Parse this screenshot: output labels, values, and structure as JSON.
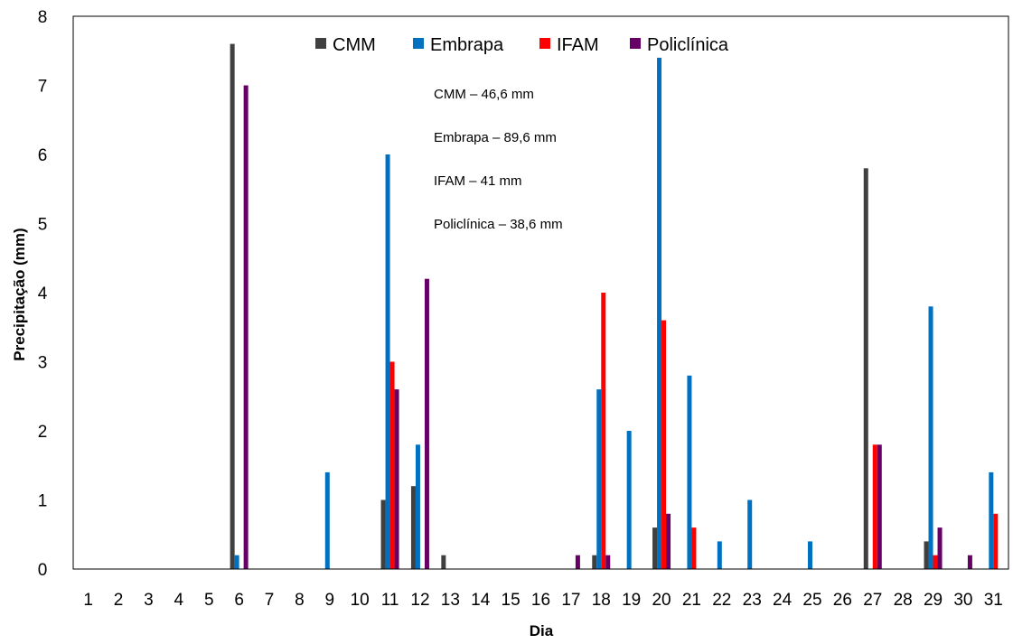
{
  "chart_data": {
    "type": "bar",
    "xlabel": "Dia",
    "ylabel": "Precipitação (mm)",
    "ylim": [
      0,
      8
    ],
    "yticks": [
      "0",
      "1",
      "2",
      "3",
      "4",
      "5",
      "6",
      "7",
      "8"
    ],
    "categories": [
      "1",
      "2",
      "3",
      "4",
      "5",
      "6",
      "7",
      "8",
      "9",
      "10",
      "11",
      "12",
      "13",
      "14",
      "15",
      "16",
      "17",
      "18",
      "19",
      "20",
      "21",
      "22",
      "23",
      "24",
      "25",
      "26",
      "27",
      "28",
      "29",
      "30",
      "31"
    ],
    "legend_position": "top-center",
    "grid": false,
    "series": [
      {
        "name": "CMM",
        "color": "#404040",
        "values": [
          0,
          0,
          0,
          0,
          0,
          7.6,
          0,
          0,
          0,
          0,
          1.0,
          1.2,
          0.2,
          0,
          0,
          0,
          0,
          0.2,
          0,
          0.6,
          0,
          0,
          0,
          0,
          0,
          0,
          5.8,
          0,
          0.4,
          0,
          0
        ]
      },
      {
        "name": "Embrapa",
        "color": "#0070C0",
        "values": [
          0,
          0,
          0,
          0,
          0,
          0.2,
          0,
          0,
          1.4,
          0,
          6.0,
          1.8,
          0,
          0,
          0,
          0,
          0,
          2.6,
          2.0,
          7.4,
          2.8,
          0.4,
          1.0,
          0,
          0.4,
          0,
          0,
          0,
          3.8,
          0,
          1.4
        ]
      },
      {
        "name": "IFAM",
        "color": "#FF0000",
        "values": [
          0,
          0,
          0,
          0,
          0,
          0,
          0,
          0,
          0,
          0,
          3.0,
          0,
          0,
          0,
          0,
          0,
          0,
          4.0,
          0,
          3.6,
          0.6,
          0,
          0,
          0,
          0,
          0,
          1.8,
          0,
          0.2,
          0,
          0.8
        ]
      },
      {
        "name": "Policlínica",
        "color": "#660066",
        "values": [
          0,
          0,
          0,
          0,
          0,
          7.0,
          0,
          0,
          0,
          0,
          2.6,
          4.2,
          0,
          0,
          0,
          0,
          0.2,
          0.2,
          0,
          0.8,
          0,
          0,
          0,
          0,
          0,
          0,
          1.8,
          0,
          0.6,
          0.2,
          0
        ]
      }
    ],
    "annotations": [
      "CMM – 46,6 mm",
      "Embrapa – 89,6 mm",
      "IFAM – 41 mm",
      "Policlínica – 38,6 mm"
    ]
  }
}
